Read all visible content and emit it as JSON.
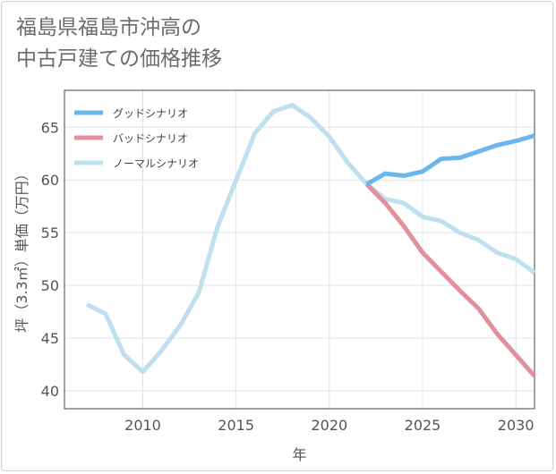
{
  "title_line1": "福島県福島市沖高の",
  "title_line2": "中古戸建ての価格推移",
  "chart_data": {
    "type": "line",
    "xlabel": "年",
    "ylabel": "坪（3.3㎡）単価（万円）",
    "xlim": [
      2005.8,
      2031
    ],
    "ylim": [
      38.3,
      68.5
    ],
    "xticks": [
      2010,
      2015,
      2020,
      2025,
      2030
    ],
    "yticks": [
      40,
      45,
      50,
      55,
      60,
      65
    ],
    "grid": true,
    "legend_position": "top-left",
    "series": [
      {
        "name": "グッドシナリオ",
        "color": "#6cb6ee",
        "x": [
          2022,
          2023,
          2024,
          2025,
          2026,
          2027,
          2028,
          2029,
          2030,
          2031
        ],
        "y": [
          59.6,
          60.6,
          60.4,
          60.8,
          62.0,
          62.1,
          62.7,
          63.3,
          63.7,
          64.2
        ]
      },
      {
        "name": "バッドシナリオ",
        "color": "#e0919a",
        "x": [
          2022,
          2023,
          2024,
          2025,
          2026,
          2027,
          2028,
          2029,
          2030,
          2031
        ],
        "y": [
          59.6,
          57.8,
          55.6,
          53.1,
          51.3,
          49.5,
          47.8,
          45.4,
          43.4,
          41.4
        ]
      },
      {
        "name": "ノーマルシナリオ",
        "color": "#bfe0ee",
        "x": [
          2007,
          2008,
          2009,
          2010,
          2011,
          2012,
          2013,
          2014,
          2015,
          2016,
          2017,
          2018,
          2019,
          2020,
          2021,
          2022,
          2023,
          2024,
          2025,
          2026,
          2027,
          2028,
          2029,
          2030,
          2031
        ],
        "y": [
          48.2,
          47.3,
          43.4,
          41.8,
          43.8,
          46.2,
          49.3,
          55.5,
          60.0,
          64.4,
          66.5,
          67.1,
          65.9,
          64.1,
          61.6,
          59.6,
          58.2,
          57.8,
          56.5,
          56.1,
          55.0,
          54.3,
          53.1,
          52.5,
          51.2
        ]
      }
    ]
  }
}
